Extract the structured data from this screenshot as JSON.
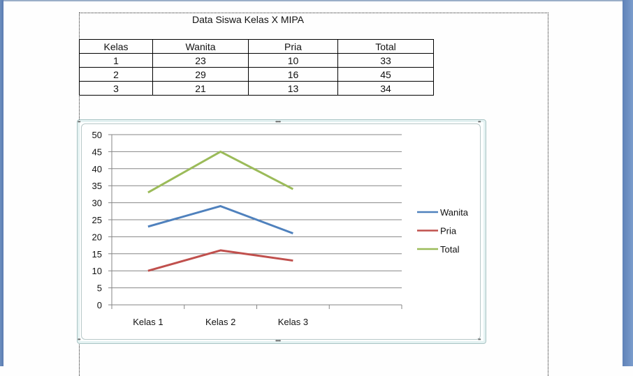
{
  "document": {
    "title": "Data Siswa  Kelas X MIPA"
  },
  "table": {
    "headers": [
      "Kelas",
      "Wanita",
      "Pria",
      "Total"
    ],
    "rows": [
      [
        "1",
        "23",
        "10",
        "33"
      ],
      [
        "2",
        "29",
        "16",
        "45"
      ],
      [
        "3",
        "21",
        "13",
        "34"
      ]
    ]
  },
  "chart_data": {
    "type": "line",
    "title": "",
    "xlabel": "",
    "ylabel": "",
    "categories": [
      "Kelas 1",
      "Kelas 2",
      "Kelas 3",
      ""
    ],
    "series": [
      {
        "name": "Wanita",
        "values": [
          23,
          29,
          21
        ],
        "color": "#4f81bd"
      },
      {
        "name": "Pria",
        "values": [
          10,
          16,
          13
        ],
        "color": "#c0504d"
      },
      {
        "name": "Total",
        "values": [
          33,
          45,
          34
        ],
        "color": "#9bbb59"
      }
    ],
    "ylim": [
      0,
      50
    ],
    "yticks": [
      "0",
      "5",
      "10",
      "15",
      "20",
      "25",
      "30",
      "35",
      "40",
      "45",
      "50"
    ],
    "grid": true,
    "legend_position": "right"
  },
  "colors": {
    "gridline": "#868686",
    "chart_border": "#a9c4c4",
    "window_edge": "#5f82b8"
  }
}
